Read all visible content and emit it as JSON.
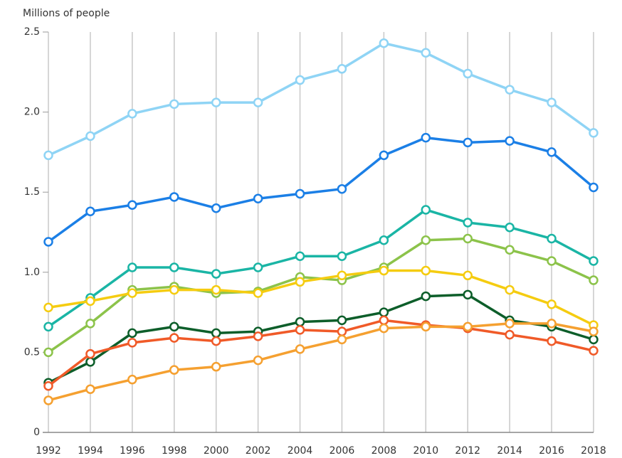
{
  "chart_data": {
    "type": "line",
    "y_label": "Millions of people",
    "x": [
      1992,
      1994,
      1996,
      1998,
      2000,
      2002,
      2004,
      2006,
      2008,
      2010,
      2012,
      2014,
      2016,
      2018
    ],
    "xlim": [
      1992,
      2018
    ],
    "xticks": [
      1992,
      1994,
      1996,
      1998,
      2000,
      2002,
      2004,
      2006,
      2008,
      2010,
      2012,
      2014,
      2016,
      2018
    ],
    "ylim": [
      0,
      2.5
    ],
    "yticks": [
      0,
      0.5,
      {
        "value": 1,
        "label": "1.0"
      },
      1.5,
      {
        "value": 2,
        "label": "2.0"
      },
      2.5
    ],
    "grid": true,
    "series": [
      {
        "color": "#8fd4f5",
        "values": [
          1.73,
          1.85,
          1.99,
          2.05,
          2.06,
          2.06,
          2.2,
          2.27,
          2.43,
          2.37,
          2.24,
          2.14,
          2.06,
          1.87
        ]
      },
      {
        "color": "#1b7fe6",
        "values": [
          1.19,
          1.38,
          1.42,
          1.47,
          1.4,
          1.46,
          1.49,
          1.52,
          1.73,
          1.84,
          1.81,
          1.82,
          1.75,
          1.53
        ]
      },
      {
        "color": "#1ab5a5",
        "values": [
          0.66,
          0.84,
          1.03,
          1.03,
          0.99,
          1.03,
          1.1,
          1.1,
          1.2,
          1.39,
          1.31,
          1.28,
          1.21,
          1.07
        ]
      },
      {
        "color": "#8cc34a",
        "values": [
          0.5,
          0.68,
          0.89,
          0.91,
          0.87,
          0.88,
          0.97,
          0.95,
          1.03,
          1.2,
          1.21,
          1.14,
          1.07,
          0.95
        ]
      },
      {
        "color": "#f5cc10",
        "values": [
          0.78,
          0.82,
          0.87,
          0.89,
          0.89,
          0.87,
          0.94,
          0.98,
          1.01,
          1.01,
          0.98,
          0.89,
          0.8,
          0.67
        ]
      },
      {
        "color": "#0d5e2a",
        "values": [
          0.31,
          0.44,
          0.62,
          0.66,
          0.62,
          0.63,
          0.69,
          0.7,
          0.75,
          0.85,
          0.86,
          0.7,
          0.66,
          0.58
        ]
      },
      {
        "color": "#f05a28",
        "values": [
          0.29,
          0.49,
          0.56,
          0.59,
          0.57,
          0.6,
          0.64,
          0.63,
          0.7,
          0.67,
          0.65,
          0.61,
          0.57,
          0.51
        ]
      },
      {
        "color": "#f5a030",
        "values": [
          0.2,
          0.27,
          0.33,
          0.39,
          0.41,
          0.45,
          0.52,
          0.58,
          0.65,
          0.66,
          0.66,
          0.68,
          0.68,
          0.63
        ]
      }
    ]
  }
}
